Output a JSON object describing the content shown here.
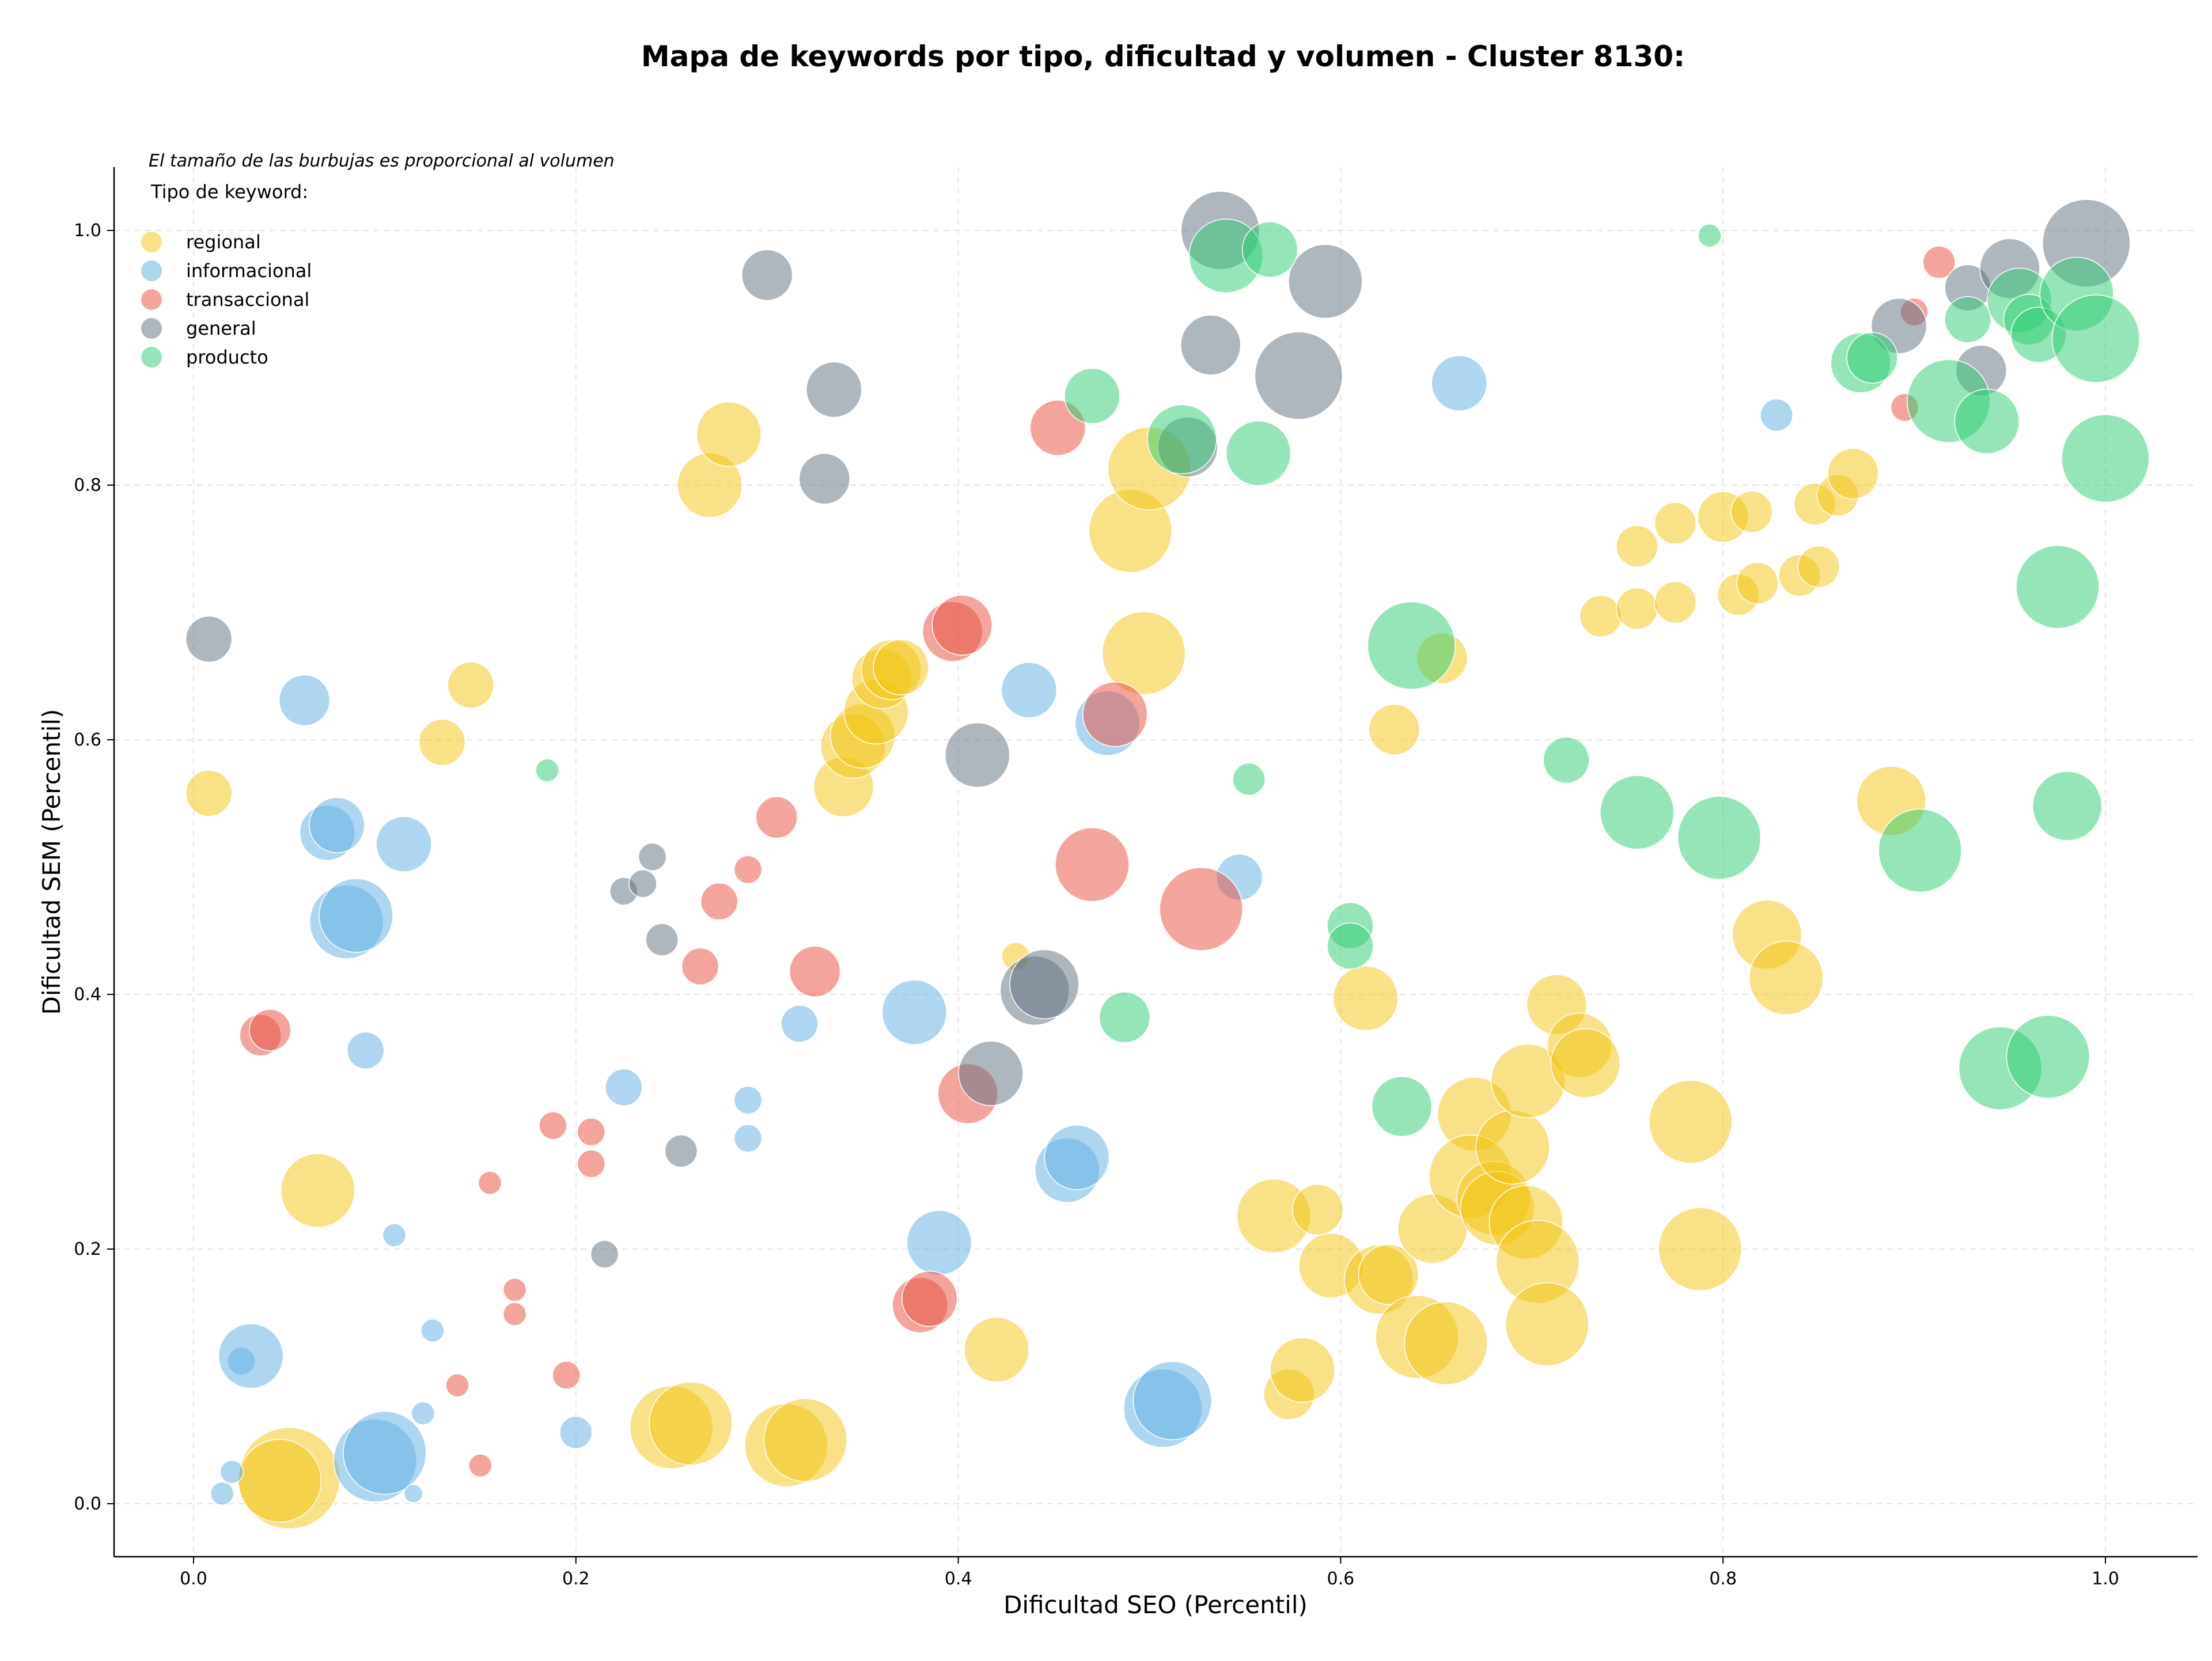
{
  "chart_data": {
    "type": "scatter",
    "title": "Mapa de keywords por tipo, dificultad y volumen - Cluster 8130:",
    "xlabel": "Dificultad SEO (Percentil)",
    "ylabel": "Dificultad SEM (Percentil)",
    "xlim": [
      -0.04,
      1.05
    ],
    "ylim": [
      -0.04,
      1.05
    ],
    "xticks": [
      "0.0",
      "0.2",
      "0.4",
      "0.6",
      "0.8",
      "1.0"
    ],
    "yticks": [
      "0.0",
      "0.2",
      "0.4",
      "0.6",
      "0.8",
      "1.0"
    ],
    "grid": true,
    "size_note": "El tamaño de las burbujas es proporcional al volumen",
    "legend_title": "Tipo de keyword:",
    "legend_position": "top-left",
    "series": [
      {
        "name": "regional",
        "color": "#f1c40f",
        "points": [
          [
            0.008,
            0.558,
            1
          ],
          [
            0.13,
            0.598,
            1
          ],
          [
            0.145,
            0.643,
            1
          ],
          [
            0.065,
            0.246,
            1.6
          ],
          [
            0.05,
            0.02,
            2.2
          ],
          [
            0.045,
            0.018,
            1.8
          ],
          [
            0.25,
            0.06,
            1.8
          ],
          [
            0.26,
            0.063,
            1.8
          ],
          [
            0.31,
            0.046,
            1.8
          ],
          [
            0.32,
            0.05,
            1.8
          ],
          [
            0.42,
            0.121,
            1.4
          ],
          [
            0.27,
            0.8,
            1.4
          ],
          [
            0.28,
            0.84,
            1.4
          ],
          [
            0.34,
            0.563,
            1.3
          ],
          [
            0.345,
            0.595,
            1.4
          ],
          [
            0.35,
            0.603,
            1.4
          ],
          [
            0.357,
            0.622,
            1.4
          ],
          [
            0.36,
            0.648,
            1.3
          ],
          [
            0.365,
            0.655,
            1.3
          ],
          [
            0.37,
            0.657,
            1.2
          ],
          [
            0.43,
            0.43,
            0.6
          ],
          [
            0.49,
            0.764,
            1.8
          ],
          [
            0.5,
            0.813,
            1.8
          ],
          [
            0.497,
            0.668,
            1.8
          ],
          [
            0.565,
            0.226,
            1.6
          ],
          [
            0.588,
            0.231,
            1.1
          ],
          [
            0.595,
            0.187,
            1.4
          ],
          [
            0.62,
            0.176,
            1.5
          ],
          [
            0.625,
            0.18,
            1.3
          ],
          [
            0.573,
            0.086,
            1.1
          ],
          [
            0.58,
            0.105,
            1.4
          ],
          [
            0.613,
            0.397,
            1.4
          ],
          [
            0.628,
            0.608,
            1.1
          ],
          [
            0.653,
            0.664,
            1.1
          ],
          [
            0.64,
            0.131,
            1.8
          ],
          [
            0.655,
            0.126,
            1.8
          ],
          [
            0.648,
            0.216,
            1.5
          ],
          [
            0.67,
            0.306,
            1.6
          ],
          [
            0.668,
            0.257,
            1.8
          ],
          [
            0.68,
            0.24,
            1.6
          ],
          [
            0.682,
            0.232,
            1.6
          ],
          [
            0.69,
            0.28,
            1.6
          ],
          [
            0.697,
            0.221,
            1.6
          ],
          [
            0.698,
            0.332,
            1.6
          ],
          [
            0.703,
            0.19,
            1.8
          ],
          [
            0.708,
            0.141,
            1.8
          ],
          [
            0.713,
            0.392,
            1.3
          ],
          [
            0.725,
            0.36,
            1.4
          ],
          [
            0.728,
            0.346,
            1.5
          ],
          [
            0.736,
            0.697,
            0.9
          ],
          [
            0.755,
            0.752,
            0.9
          ],
          [
            0.755,
            0.703,
            0.9
          ],
          [
            0.775,
            0.77,
            0.9
          ],
          [
            0.775,
            0.708,
            0.9
          ],
          [
            0.783,
            0.3,
            1.8
          ],
          [
            0.788,
            0.2,
            1.8
          ],
          [
            0.8,
            0.775,
            1.1
          ],
          [
            0.808,
            0.714,
            0.9
          ],
          [
            0.815,
            0.779,
            0.9
          ],
          [
            0.818,
            0.723,
            0.9
          ],
          [
            0.823,
            0.447,
            1.5
          ],
          [
            0.833,
            0.413,
            1.6
          ],
          [
            0.84,
            0.729,
            0.9
          ],
          [
            0.848,
            0.785,
            0.9
          ],
          [
            0.85,
            0.736,
            0.9
          ],
          [
            0.86,
            0.792,
            0.9
          ],
          [
            0.868,
            0.809,
            1.1
          ],
          [
            0.888,
            0.552,
            1.5
          ]
        ]
      },
      {
        "name": "informacional",
        "color": "#5dade2",
        "points": [
          [
            0.015,
            0.008,
            0.5
          ],
          [
            0.02,
            0.025,
            0.5
          ],
          [
            0.025,
            0.112,
            0.6
          ],
          [
            0.03,
            0.116,
            1.4
          ],
          [
            0.058,
            0.631,
            1.1
          ],
          [
            0.07,
            0.527,
            1.2
          ],
          [
            0.075,
            0.533,
            1.2
          ],
          [
            0.08,
            0.457,
            1.6
          ],
          [
            0.085,
            0.462,
            1.6
          ],
          [
            0.09,
            0.356,
            0.8
          ],
          [
            0.095,
            0.034,
            1.8
          ],
          [
            0.1,
            0.04,
            1.8
          ],
          [
            0.105,
            0.211,
            0.5
          ],
          [
            0.11,
            0.518,
            1.2
          ],
          [
            0.115,
            0.008,
            0.4
          ],
          [
            0.12,
            0.071,
            0.5
          ],
          [
            0.125,
            0.136,
            0.5
          ],
          [
            0.2,
            0.056,
            0.7
          ],
          [
            0.225,
            0.327,
            0.8
          ],
          [
            0.29,
            0.317,
            0.6
          ],
          [
            0.29,
            0.287,
            0.6
          ],
          [
            0.317,
            0.377,
            0.8
          ],
          [
            0.377,
            0.386,
            1.4
          ],
          [
            0.39,
            0.205,
            1.4
          ],
          [
            0.437,
            0.639,
            1.2
          ],
          [
            0.457,
            0.262,
            1.4
          ],
          [
            0.462,
            0.272,
            1.4
          ],
          [
            0.478,
            0.613,
            1.4
          ],
          [
            0.507,
            0.075,
            1.7
          ],
          [
            0.512,
            0.081,
            1.7
          ],
          [
            0.547,
            0.492,
            1.0
          ],
          [
            0.662,
            0.88,
            1.2
          ],
          [
            0.828,
            0.855,
            0.7
          ]
        ]
      },
      {
        "name": "transaccional",
        "color": "#e74c3c",
        "points": [
          [
            0.035,
            0.368,
            0.9
          ],
          [
            0.04,
            0.372,
            0.9
          ],
          [
            0.138,
            0.093,
            0.5
          ],
          [
            0.15,
            0.03,
            0.5
          ],
          [
            0.155,
            0.252,
            0.5
          ],
          [
            0.168,
            0.168,
            0.5
          ],
          [
            0.168,
            0.149,
            0.5
          ],
          [
            0.188,
            0.297,
            0.6
          ],
          [
            0.195,
            0.101,
            0.6
          ],
          [
            0.208,
            0.292,
            0.6
          ],
          [
            0.208,
            0.267,
            0.6
          ],
          [
            0.265,
            0.422,
            0.8
          ],
          [
            0.275,
            0.473,
            0.8
          ],
          [
            0.29,
            0.498,
            0.6
          ],
          [
            0.305,
            0.539,
            0.9
          ],
          [
            0.325,
            0.418,
            1.1
          ],
          [
            0.38,
            0.156,
            1.2
          ],
          [
            0.385,
            0.161,
            1.2
          ],
          [
            0.397,
            0.685,
            1.3
          ],
          [
            0.402,
            0.69,
            1.3
          ],
          [
            0.405,
            0.322,
            1.3
          ],
          [
            0.452,
            0.845,
            1.2
          ],
          [
            0.47,
            0.502,
            1.6
          ],
          [
            0.482,
            0.62,
            1.4
          ],
          [
            0.527,
            0.467,
            1.8
          ],
          [
            0.895,
            0.861,
            0.6
          ],
          [
            0.9,
            0.936,
            0.6
          ],
          [
            0.913,
            0.975,
            0.7
          ]
        ]
      },
      {
        "name": "general",
        "color": "#5d6d7e",
        "points": [
          [
            0.008,
            0.679,
            1.0
          ],
          [
            0.215,
            0.196,
            0.6
          ],
          [
            0.225,
            0.481,
            0.6
          ],
          [
            0.235,
            0.487,
            0.6
          ],
          [
            0.24,
            0.508,
            0.6
          ],
          [
            0.245,
            0.443,
            0.7
          ],
          [
            0.255,
            0.277,
            0.7
          ],
          [
            0.3,
            0.965,
            1.1
          ],
          [
            0.33,
            0.805,
            1.1
          ],
          [
            0.335,
            0.875,
            1.2
          ],
          [
            0.41,
            0.588,
            1.4
          ],
          [
            0.417,
            0.338,
            1.4
          ],
          [
            0.44,
            0.403,
            1.5
          ],
          [
            0.445,
            0.408,
            1.5
          ],
          [
            0.52,
            0.83,
            1.3
          ],
          [
            0.532,
            0.91,
            1.3
          ],
          [
            0.537,
            1.0,
            1.7
          ],
          [
            0.578,
            0.886,
            1.9
          ],
          [
            0.592,
            0.96,
            1.6
          ],
          [
            0.892,
            0.925,
            1.2
          ],
          [
            0.928,
            0.955,
            1.0
          ],
          [
            0.935,
            0.89,
            1.1
          ],
          [
            0.95,
            0.97,
            1.3
          ],
          [
            0.99,
            0.99,
            1.9
          ]
        ]
      },
      {
        "name": "producto",
        "color": "#2ecc71",
        "points": [
          [
            0.185,
            0.576,
            0.5
          ],
          [
            0.47,
            0.87,
            1.2
          ],
          [
            0.487,
            0.382,
            1.1
          ],
          [
            0.517,
            0.836,
            1.5
          ],
          [
            0.54,
            0.98,
            1.6
          ],
          [
            0.552,
            0.569,
            0.7
          ],
          [
            0.557,
            0.825,
            1.4
          ],
          [
            0.563,
            0.985,
            1.2
          ],
          [
            0.605,
            0.454,
            1.0
          ],
          [
            0.605,
            0.438,
            1.0
          ],
          [
            0.632,
            0.312,
            1.3
          ],
          [
            0.637,
            0.674,
            1.9
          ],
          [
            0.718,
            0.584,
            1.0
          ],
          [
            0.755,
            0.543,
            1.6
          ],
          [
            0.793,
            0.996,
            0.5
          ],
          [
            0.798,
            0.523,
            1.8
          ],
          [
            0.872,
            0.896,
            1.3
          ],
          [
            0.878,
            0.9,
            1.1
          ],
          [
            0.903,
            0.513,
            1.8
          ],
          [
            0.918,
            0.866,
            1.8
          ],
          [
            0.928,
            0.93,
            1.0
          ],
          [
            0.938,
            0.85,
            1.4
          ],
          [
            0.945,
            0.342,
            1.8
          ],
          [
            0.955,
            0.945,
            1.4
          ],
          [
            0.96,
            0.93,
            1.1
          ],
          [
            0.965,
            0.918,
            1.2
          ],
          [
            0.97,
            0.351,
            1.8
          ],
          [
            0.975,
            0.72,
            1.8
          ],
          [
            0.98,
            0.548,
            1.5
          ],
          [
            0.985,
            0.95,
            1.6
          ],
          [
            0.995,
            0.915,
            1.9
          ],
          [
            1.0,
            0.821,
            1.9
          ]
        ]
      }
    ]
  }
}
